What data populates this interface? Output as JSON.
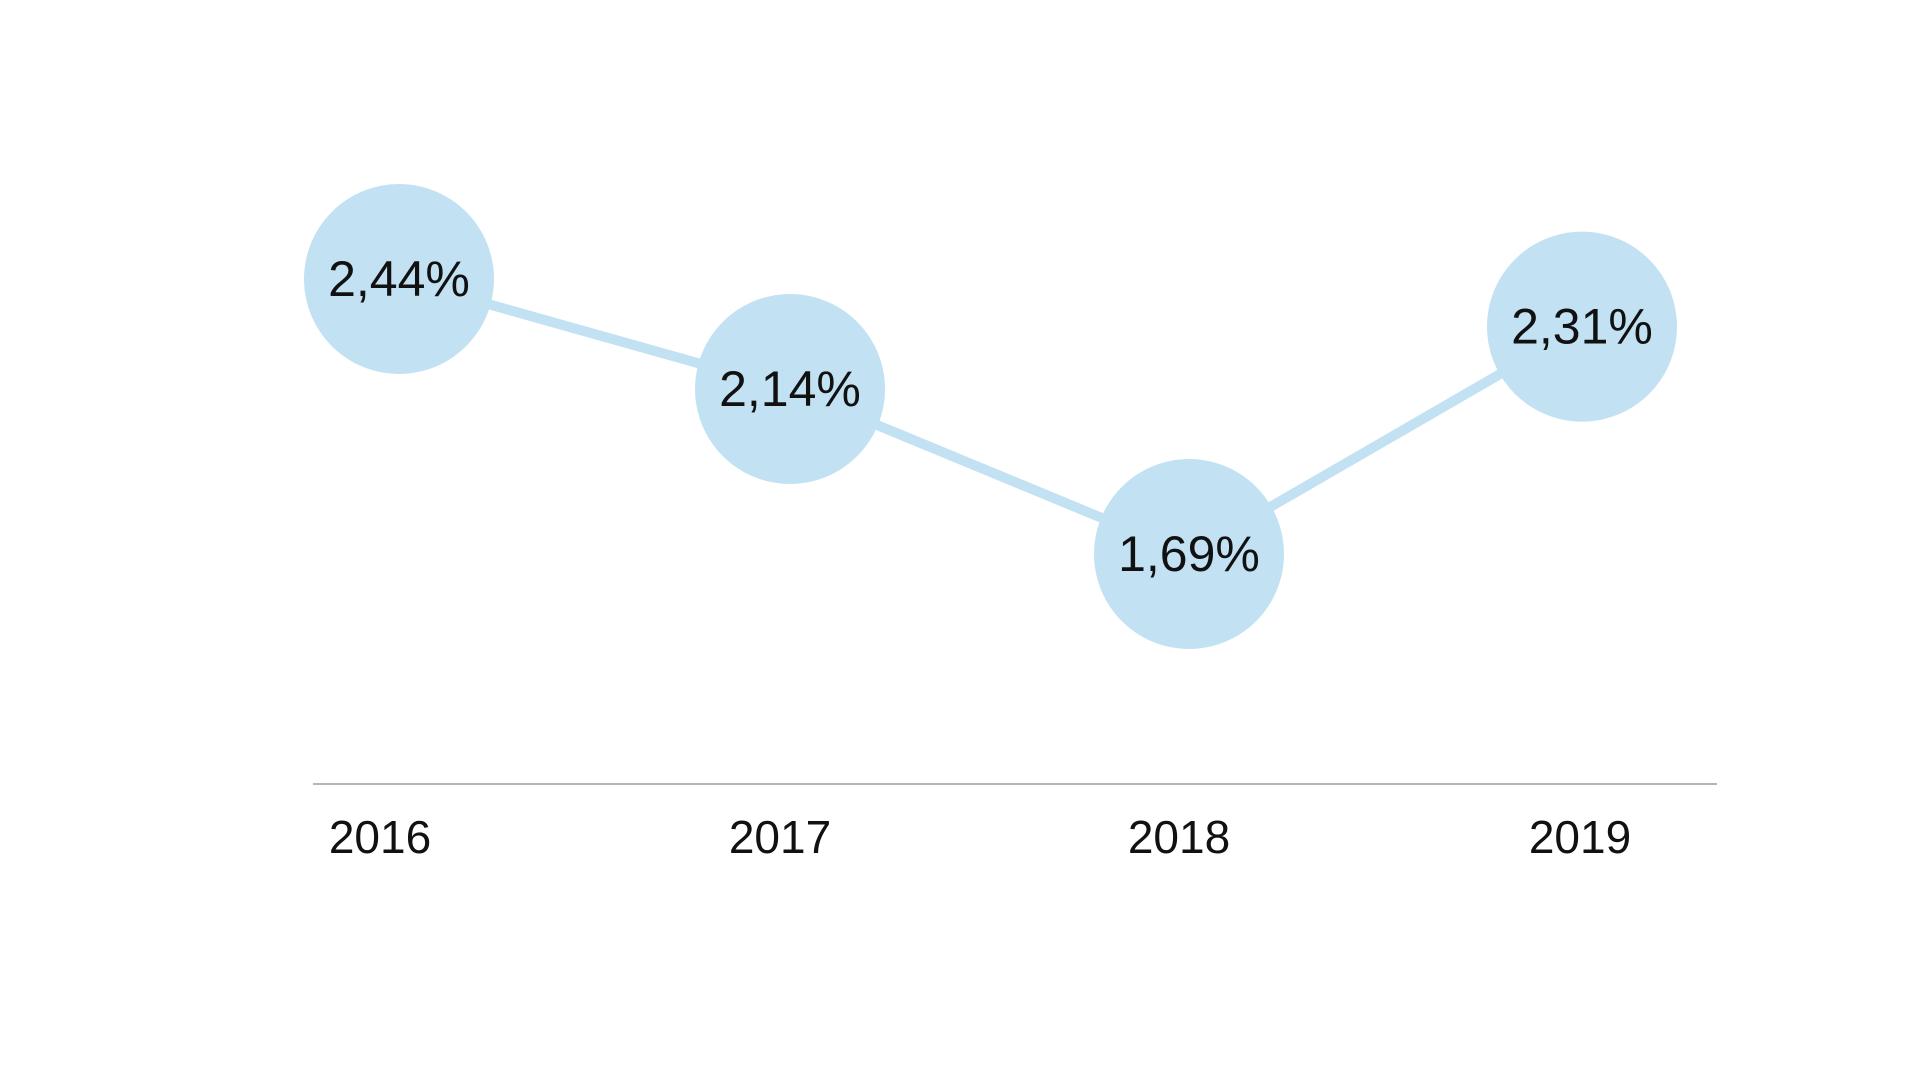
{
  "chart_data": {
    "type": "line",
    "categories": [
      "2016",
      "2017",
      "2018",
      "2019"
    ],
    "series": [
      {
        "values": [
          2.44,
          2.14,
          1.69,
          2.31
        ],
        "labels": [
          "2,44%",
          "2,14%",
          "1,69%",
          "2,31%"
        ]
      }
    ],
    "title": "",
    "xlabel": "",
    "ylabel": "",
    "grid": false,
    "legend": "none",
    "colors": {
      "marker": "#c2e2f4",
      "line": "#c2e2f4",
      "axis": "#9e9e9e",
      "text": "#111111"
    }
  }
}
